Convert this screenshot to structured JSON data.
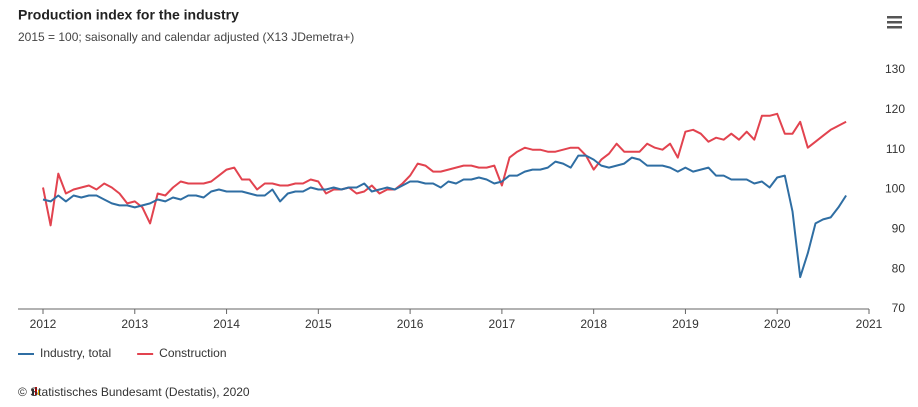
{
  "chart_data": {
    "type": "line",
    "title": "Production index for the industry",
    "subtitle": "2015 = 100; saisonally and calendar adjusted (X13 JDemetra+)",
    "source": "© Statistisches Bundesamt (Destatis), 2020",
    "x": [
      2012,
      2012.083,
      2012.167,
      2012.25,
      2012.333,
      2012.417,
      2012.5,
      2012.583,
      2012.667,
      2012.75,
      2012.833,
      2012.917,
      2013,
      2013.083,
      2013.167,
      2013.25,
      2013.333,
      2013.417,
      2013.5,
      2013.583,
      2013.667,
      2013.75,
      2013.833,
      2013.917,
      2014,
      2014.083,
      2014.167,
      2014.25,
      2014.333,
      2014.417,
      2014.5,
      2014.583,
      2014.667,
      2014.75,
      2014.833,
      2014.917,
      2015,
      2015.083,
      2015.167,
      2015.25,
      2015.333,
      2015.417,
      2015.5,
      2015.583,
      2015.667,
      2015.75,
      2015.833,
      2015.917,
      2016,
      2016.083,
      2016.167,
      2016.25,
      2016.333,
      2016.417,
      2016.5,
      2016.583,
      2016.667,
      2016.75,
      2016.833,
      2016.917,
      2017,
      2017.083,
      2017.167,
      2017.25,
      2017.333,
      2017.417,
      2017.5,
      2017.583,
      2017.667,
      2017.75,
      2017.833,
      2017.917,
      2018,
      2018.083,
      2018.167,
      2018.25,
      2018.333,
      2018.417,
      2018.5,
      2018.583,
      2018.667,
      2018.75,
      2018.833,
      2018.917,
      2019,
      2019.083,
      2019.167,
      2019.25,
      2019.333,
      2019.417,
      2019.5,
      2019.583,
      2019.667,
      2019.75,
      2019.833,
      2019.917,
      2020,
      2020.083,
      2020.167,
      2020.25,
      2020.333,
      2020.417,
      2020.5,
      2020.583,
      2020.667,
      2020.75
    ],
    "series": [
      {
        "name": "Industry, total",
        "color": "#2f6ea3",
        "values": [
          97.5,
          97,
          98.5,
          97,
          98.5,
          98,
          98.5,
          98.5,
          97.5,
          96.5,
          96,
          96,
          95.5,
          96,
          96.5,
          97.5,
          97,
          98,
          97.5,
          98.5,
          98.5,
          98,
          99.5,
          100,
          99.5,
          99.5,
          99.5,
          99,
          98.5,
          98.5,
          100,
          97,
          99,
          99.5,
          99.5,
          100.5,
          100,
          100,
          100.5,
          100,
          100.5,
          100.5,
          101.5,
          99.5,
          100,
          100.5,
          100,
          101,
          102,
          102,
          101.5,
          101.5,
          100.5,
          102,
          101.5,
          102.5,
          102.5,
          103,
          102.5,
          101.5,
          102,
          103.5,
          103.5,
          104.5,
          105,
          105,
          105.5,
          107,
          106.5,
          105.5,
          108.5,
          108.5,
          107.5,
          106,
          105.5,
          106,
          106.5,
          108,
          107.5,
          106,
          106,
          106,
          105.5,
          104.5,
          105.5,
          104.5,
          105,
          105.5,
          103.5,
          103.5,
          102.5,
          102.5,
          102.5,
          101.5,
          102,
          100.5,
          103,
          103.5,
          94.5,
          78,
          84,
          91.5,
          92.5,
          93,
          95.5,
          98.5
        ]
      },
      {
        "name": "Construction",
        "color": "#e2434f",
        "values": [
          100.5,
          91,
          104,
          99,
          100,
          100.5,
          101,
          100,
          101.5,
          100.5,
          99,
          96.5,
          97,
          95.5,
          91.5,
          99,
          98.5,
          100.5,
          102,
          101.5,
          101.5,
          101.5,
          102,
          103.5,
          105,
          105.5,
          102.5,
          102.5,
          100,
          101.5,
          101.5,
          101,
          101,
          101.5,
          101.5,
          102.5,
          102,
          99,
          100,
          100,
          100.5,
          99,
          99.5,
          101,
          99,
          100,
          100,
          101.5,
          103.5,
          106.5,
          106,
          104.5,
          104.5,
          105,
          105.5,
          106,
          106,
          105.5,
          105.5,
          106,
          101,
          108,
          109.5,
          110.5,
          110,
          110,
          109.5,
          109.5,
          110,
          110.5,
          110.5,
          108.5,
          105,
          107.5,
          109,
          111.5,
          109.5,
          109.5,
          109.5,
          111.5,
          110.5,
          110,
          111.5,
          108,
          114.5,
          115,
          114,
          112,
          113,
          112.5,
          114,
          112.5,
          114.5,
          112.5,
          118.5,
          118.5,
          119,
          114,
          114,
          117,
          110.5,
          112,
          113.5,
          115,
          116,
          117
        ]
      }
    ],
    "xlim": [
      2012,
      2021
    ],
    "xticks": [
      2012,
      2013,
      2014,
      2015,
      2016,
      2017,
      2018,
      2019,
      2020,
      2021
    ],
    "ylim": [
      70,
      130
    ],
    "yticks": [
      70,
      80,
      90,
      100,
      110,
      120,
      130
    ]
  }
}
